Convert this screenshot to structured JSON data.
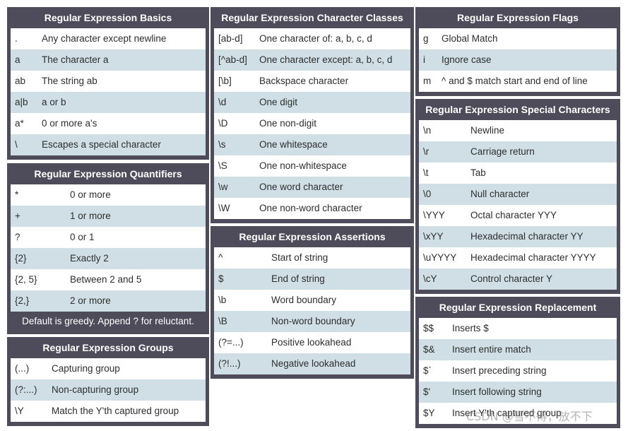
{
  "basics": {
    "title": "Regular Expression Basics",
    "rows": [
      {
        "k": ".",
        "v": "Any character except newline"
      },
      {
        "k": "a",
        "v": "The character a"
      },
      {
        "k": "ab",
        "v": "The string ab"
      },
      {
        "k": "a|b",
        "v": "a or b"
      },
      {
        "k": "a*",
        "v": "0 or more a's"
      },
      {
        "k": "\\",
        "v": "Escapes a special character"
      }
    ]
  },
  "quantifiers": {
    "title": "Regular Expression Quantifiers",
    "rows": [
      {
        "k": "*",
        "v": "0 or more"
      },
      {
        "k": "+",
        "v": "1 or more"
      },
      {
        "k": "?",
        "v": "0 or 1"
      },
      {
        "k": "{2}",
        "v": "Exactly 2"
      },
      {
        "k": "{2, 5}",
        "v": "Between 2 and 5"
      },
      {
        "k": "{2,}",
        "v": "2 or more"
      }
    ],
    "note": "Default is greedy. Append ? for reluctant."
  },
  "groups": {
    "title": "Regular Expression Groups",
    "rows": [
      {
        "k": "(...)",
        "v": "Capturing group"
      },
      {
        "k": "(?:...)",
        "v": "Non-capturing group"
      },
      {
        "k": "\\Y",
        "v": "Match the Y'th captured group"
      }
    ]
  },
  "classes": {
    "title": "Regular Expression Character Classes",
    "rows": [
      {
        "k": "[ab-d]",
        "v": "One character of: a, b, c, d"
      },
      {
        "k": "[^ab-d]",
        "v": "One character except: a, b, c, d"
      },
      {
        "k": "[\\b]",
        "v": "Backspace character"
      },
      {
        "k": "\\d",
        "v": "One digit"
      },
      {
        "k": "\\D",
        "v": "One non-digit"
      },
      {
        "k": "\\s",
        "v": "One whitespace"
      },
      {
        "k": "\\S",
        "v": "One non-whitespace"
      },
      {
        "k": "\\w",
        "v": "One word character"
      },
      {
        "k": "\\W",
        "v": "One non-word character"
      }
    ]
  },
  "assertions": {
    "title": "Regular Expression Assertions",
    "rows": [
      {
        "k": "^",
        "v": "Start of string"
      },
      {
        "k": "$",
        "v": "End of string"
      },
      {
        "k": "\\b",
        "v": "Word boundary"
      },
      {
        "k": "\\B",
        "v": "Non-word boundary"
      },
      {
        "k": "(?=...)",
        "v": "Positive lookahead"
      },
      {
        "k": "(?!...)",
        "v": "Negative lookahead"
      }
    ]
  },
  "flags": {
    "title": "Regular Expression Flags",
    "rows": [
      {
        "k": "g",
        "v": "Global Match"
      },
      {
        "k": "i",
        "v": "Ignore case"
      },
      {
        "k": "m",
        "v": "^ and $ match start and end of line"
      }
    ]
  },
  "special": {
    "title": "Regular Expression Special Characters",
    "rows": [
      {
        "k": "\\n",
        "v": "Newline"
      },
      {
        "k": "\\r",
        "v": "Carriage return"
      },
      {
        "k": "\\t",
        "v": "Tab"
      },
      {
        "k": "\\0",
        "v": "Null character"
      },
      {
        "k": "\\YYY",
        "v": "Octal character YYY"
      },
      {
        "k": "\\xYY",
        "v": "Hexadecimal character YY"
      },
      {
        "k": "\\uYYYY",
        "v": "Hexadecimal character YYYY"
      },
      {
        "k": "\\cY",
        "v": "Control character Y"
      }
    ]
  },
  "replacement": {
    "title": "Regular Expression Replacement",
    "rows": [
      {
        "k": "$$",
        "v": "Inserts $"
      },
      {
        "k": "$&",
        "v": "Insert entire match"
      },
      {
        "k": "$`",
        "v": "Insert preceding string"
      },
      {
        "k": "$'",
        "v": "Insert following string"
      },
      {
        "k": "$Y",
        "v": "Insert Y'th captured group"
      }
    ]
  },
  "watermark": "CSDN @雪不得，放不下"
}
